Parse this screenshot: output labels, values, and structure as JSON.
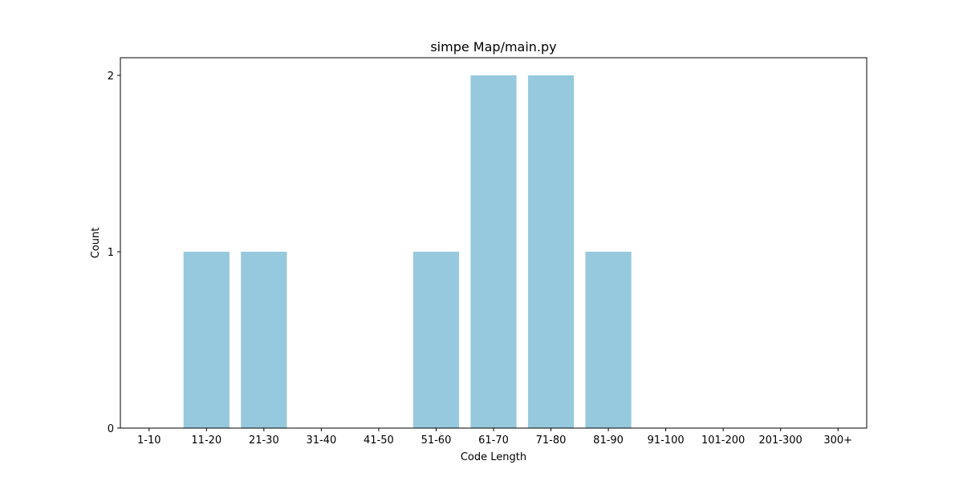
{
  "chart_data": {
    "type": "bar",
    "title": "simpe Map/main.py",
    "xlabel": "Code Length",
    "ylabel": "Count",
    "categories": [
      "1-10",
      "11-20",
      "21-30",
      "31-40",
      "41-50",
      "51-60",
      "61-70",
      "71-80",
      "81-90",
      "91-100",
      "101-200",
      "201-300",
      "300+"
    ],
    "values": [
      0,
      1,
      1,
      0,
      0,
      1,
      2,
      2,
      1,
      0,
      0,
      0,
      0
    ],
    "yticks": [
      "0",
      "1",
      "2"
    ],
    "ylim": [
      0,
      2.1
    ],
    "grid": false,
    "bar_color": "#96c9dd"
  }
}
